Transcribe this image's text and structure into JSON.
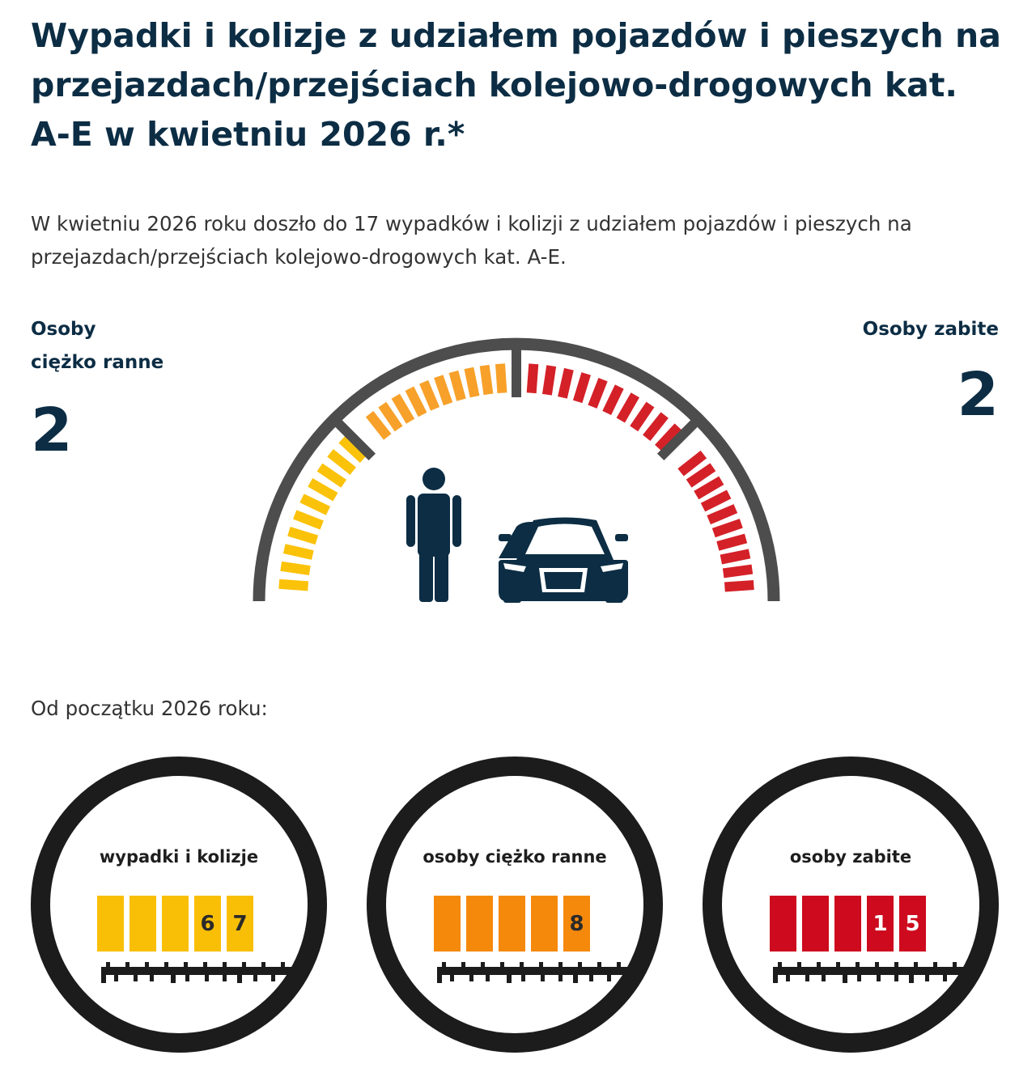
{
  "header": {
    "title": "Wypadki i kolizje z udziałem pojazdów i pieszych na przejazdach/przejściach kolejowo-drogowych kat. A-E w kwietniu 2026 r.*",
    "lead": "W kwietniu 2026 roku doszło do 17 wypadków i kolizji z udziałem pojazdów i pieszych na przejazdach/przejściach kolejowo-drogowych kat. A-E."
  },
  "month_stats": {
    "injured": {
      "label_line1": "Osoby",
      "label_line2": "ciężko ranne",
      "value": "2"
    },
    "killed": {
      "label": "Osoby zabite",
      "value": "2"
    }
  },
  "gauge": {
    "icons": [
      "pedestrian-icon",
      "car-icon"
    ],
    "colors": {
      "yellow": "#fbc20a",
      "orange": "#f7a12a",
      "red": "#d42128",
      "rim": "#4d4d4d",
      "figure": "#0c2d44"
    }
  },
  "ytd": {
    "label": "Od początku 2026 roku:",
    "counters": [
      {
        "title": "wypadki i kolizje",
        "digits": [
          "",
          "",
          "",
          "6",
          "7"
        ],
        "color": "#f9bf07",
        "text_color": "#2a2a2a"
      },
      {
        "title": "osoby ciężko ranne",
        "digits": [
          "",
          "",
          "",
          "",
          "8"
        ],
        "color": "#f5890c",
        "text_color": "#2a2a2a"
      },
      {
        "title": "osoby zabite",
        "digits": [
          "",
          "",
          "",
          "1",
          "5"
        ],
        "color": "#cd0a1e",
        "text_color": "#ffffff"
      }
    ]
  }
}
